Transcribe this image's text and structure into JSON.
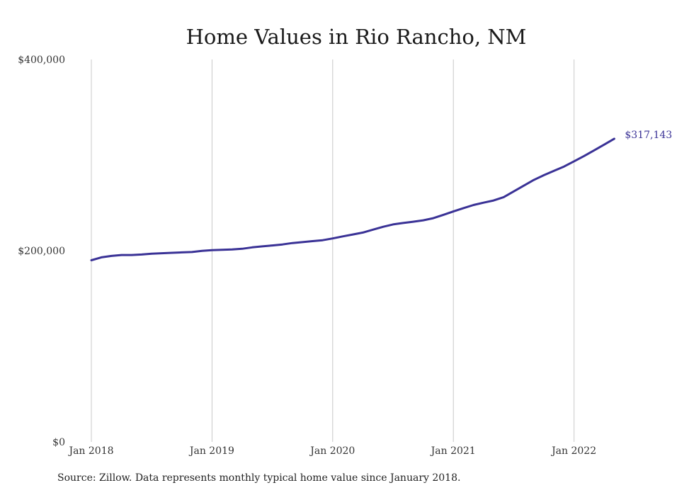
{
  "chart_data": {
    "type": "line",
    "title": "Home Values in Rio Rancho, NM",
    "xlabel": "",
    "ylabel": "",
    "x_ticks": [
      "Jan 2018",
      "Jan 2019",
      "Jan 2020",
      "Jan 2021",
      "Jan 2022"
    ],
    "y_ticks": [
      "$0",
      "$200,000",
      "$400,000"
    ],
    "ylim": [
      0,
      400000
    ],
    "grid": "vertical",
    "color": "#3a3296",
    "end_label": "$317,143",
    "series": [
      {
        "x": [
          "2018-01",
          "2018-02",
          "2018-03",
          "2018-04",
          "2018-05",
          "2018-06",
          "2018-07",
          "2018-08",
          "2018-09",
          "2018-10",
          "2018-11",
          "2018-12",
          "2019-01",
          "2019-02",
          "2019-03",
          "2019-04",
          "2019-05",
          "2019-06",
          "2019-07",
          "2019-08",
          "2019-09",
          "2019-10",
          "2019-11",
          "2019-12",
          "2020-01",
          "2020-02",
          "2020-03",
          "2020-04",
          "2020-05",
          "2020-06",
          "2020-07",
          "2020-08",
          "2020-09",
          "2020-10",
          "2020-11",
          "2020-12",
          "2021-01",
          "2021-02",
          "2021-03",
          "2021-04",
          "2021-05",
          "2021-06",
          "2021-07",
          "2021-08",
          "2021-09",
          "2021-10",
          "2021-11",
          "2021-12",
          "2022-01",
          "2022-02",
          "2022-03",
          "2022-04",
          "2022-05"
        ],
        "values": [
          190000,
          193000,
          194500,
          195500,
          195500,
          196000,
          196800,
          197300,
          197800,
          198200,
          198600,
          199800,
          200500,
          201000,
          201300,
          202000,
          203500,
          204500,
          205500,
          206500,
          208000,
          209000,
          210000,
          211000,
          212800,
          215000,
          217000,
          219000,
          222000,
          225000,
          227500,
          229000,
          230300,
          231800,
          234000,
          237500,
          241000,
          244500,
          247800,
          250200,
          252500,
          256000,
          262000,
          268000,
          274000,
          279000,
          283500,
          288000,
          293500,
          299000,
          305000,
          311000,
          317143
        ]
      }
    ]
  },
  "footer": {
    "source": "Source: Zillow. Data represents monthly typical home value since January 2018."
  }
}
